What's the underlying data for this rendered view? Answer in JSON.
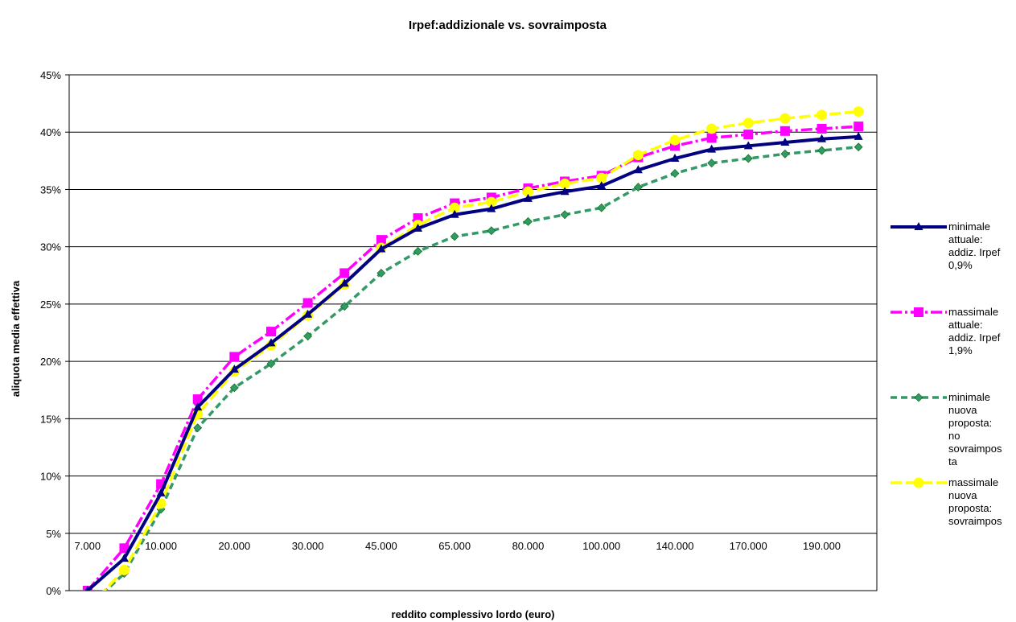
{
  "chart_data": {
    "type": "line",
    "title": "Irpef:addizionale vs. sovraimposta",
    "xlabel": "reddito complessivo lordo (euro)",
    "ylabel": "aliquota media effettiva",
    "yticks": [
      "0%",
      "5%",
      "10%",
      "15%",
      "20%",
      "25%",
      "30%",
      "35%",
      "40%",
      "45%"
    ],
    "ylim": [
      0,
      45
    ],
    "xtick_labels": [
      "7.000",
      "10.000",
      "20.000",
      "30.000",
      "45.000",
      "65.000",
      "80.000",
      "100.000",
      "140.000",
      "170.000",
      "190.000"
    ],
    "xtick_positions": [
      0,
      2,
      4,
      6,
      8,
      10,
      12,
      14,
      16,
      18,
      20
    ],
    "n_points": 22,
    "grid": true,
    "legend": "right",
    "series": [
      {
        "name": "minimale attuale: addiz. Irpef 0,9%",
        "legend_lines": [
          "minimale",
          "attuale:",
          "addiz. Irpef",
          "0,9%"
        ],
        "color": "#000080",
        "dash": "",
        "marker": "triangle",
        "values": [
          0,
          2.8,
          8.5,
          16,
          19.3,
          21.6,
          24.1,
          26.8,
          29.8,
          31.6,
          32.8,
          33.3,
          34.2,
          34.8,
          35.3,
          36.7,
          37.7,
          38.5,
          38.8,
          39.1,
          39.4,
          39.6
        ]
      },
      {
        "name": "massimale attuale: addiz. Irpef 1,9%",
        "legend_lines": [
          "massimale",
          "attuale:",
          "addiz. Irpef",
          "1,9%"
        ],
        "color": "#ff00ff",
        "dash": "14 4 3 4",
        "marker": "square",
        "values": [
          0,
          3.7,
          9.3,
          16.7,
          20.4,
          22.6,
          25.1,
          27.7,
          30.6,
          32.5,
          33.8,
          34.3,
          35.1,
          35.7,
          36.2,
          37.8,
          38.8,
          39.5,
          39.8,
          40.1,
          40.3,
          40.5
        ]
      },
      {
        "name": "minimale nuova proposta: no sovraimposta",
        "legend_lines": [
          "minimale",
          "nuova",
          "proposta:",
          "no",
          "sovraimpos",
          "ta"
        ],
        "color": "#339966",
        "dash": "8 5",
        "marker": "diamond",
        "values": [
          -1.5,
          1.5,
          7.1,
          14.2,
          17.7,
          19.8,
          22.2,
          24.8,
          27.7,
          29.6,
          30.9,
          31.4,
          32.2,
          32.8,
          33.4,
          35.2,
          36.4,
          37.3,
          37.7,
          38.1,
          38.4,
          38.7
        ]
      },
      {
        "name": "massimale nuova proposta: sovraimposta",
        "legend_lines": [
          "massimale",
          "nuova",
          "proposta:",
          "sovraimpos"
        ],
        "color": "#ffff00",
        "dash": "14 5",
        "marker": "circle",
        "values": [
          -1.5,
          1.8,
          7.6,
          15.4,
          19.1,
          21.4,
          24.0,
          26.7,
          29.9,
          31.9,
          33.4,
          33.9,
          34.8,
          35.5,
          36.0,
          38.0,
          39.3,
          40.3,
          40.8,
          41.2,
          41.5,
          41.8
        ]
      }
    ]
  }
}
